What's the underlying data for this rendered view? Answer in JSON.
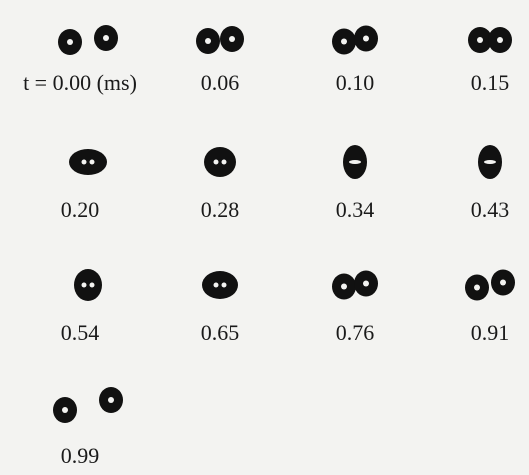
{
  "frames": [
    {
      "label": "t = 0.00 (ms)"
    },
    {
      "label": "0.06"
    },
    {
      "label": "0.10"
    },
    {
      "label": "0.15"
    },
    {
      "label": "0.20"
    },
    {
      "label": "0.28"
    },
    {
      "label": "0.34"
    },
    {
      "label": "0.43"
    },
    {
      "label": "0.54"
    },
    {
      "label": "0.65"
    },
    {
      "label": "0.76"
    },
    {
      "label": "0.91"
    },
    {
      "label": "0.99"
    }
  ]
}
